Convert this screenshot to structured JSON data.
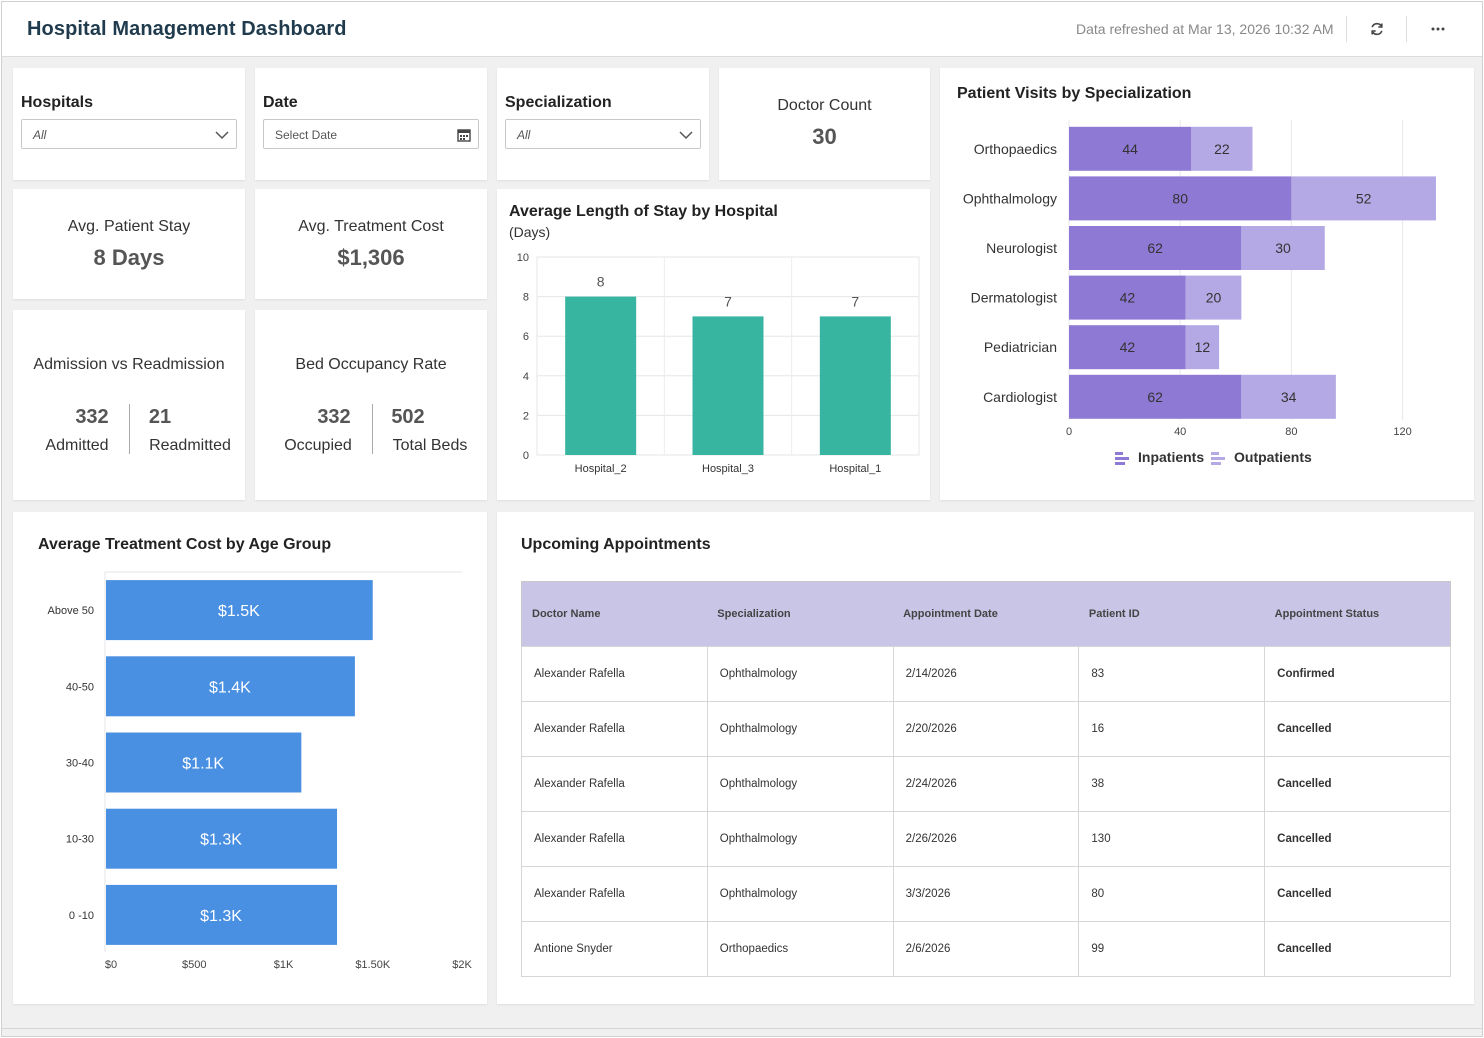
{
  "header": {
    "title": "Hospital Management Dashboard",
    "refresh_text": "Data refreshed at Mar 13, 2026 10:32 AM"
  },
  "filters": {
    "hospitals": {
      "label": "Hospitals",
      "value": "All"
    },
    "date": {
      "label": "Date",
      "placeholder": "Select Date"
    },
    "specialization": {
      "label": "Specialization",
      "value": "All"
    }
  },
  "kpis": {
    "doctor_count": {
      "title": "Doctor Count",
      "value": "30"
    },
    "avg_stay": {
      "title": "Avg. Patient Stay",
      "value": "8 Days"
    },
    "avg_cost": {
      "title": "Avg. Treatment Cost",
      "value": "$1,306"
    },
    "admission": {
      "title": "Admission vs Readmission",
      "left_value": "332",
      "left_label": "Admitted",
      "right_value": "21",
      "right_label": "Readmitted"
    },
    "occupancy": {
      "title": "Bed Occupancy Rate",
      "left_value": "332",
      "left_label": "Occupied",
      "right_value": "502",
      "right_label": "Total Beds"
    }
  },
  "stay_chart": {
    "title": "Average Length of Stay by Hospital",
    "subtitle": "(Days)"
  },
  "visits_chart": {
    "title": "Patient Visits by Specialization"
  },
  "cost_chart": {
    "title": "Average Treatment Cost by Age Group"
  },
  "appointments": {
    "title": "Upcoming Appointments",
    "columns": [
      "Doctor Name",
      "Specialization",
      "Appointment Date",
      "Patient ID",
      "Appointment Status"
    ],
    "rows": [
      [
        "Alexander Rafella",
        "Ophthalmology",
        "2/14/2026",
        "83",
        "Confirmed"
      ],
      [
        "Alexander Rafella",
        "Ophthalmology",
        "2/20/2026",
        "16",
        "Cancelled"
      ],
      [
        "Alexander Rafella",
        "Ophthalmology",
        "2/24/2026",
        "38",
        "Cancelled"
      ],
      [
        "Alexander Rafella",
        "Ophthalmology",
        "2/26/2026",
        "130",
        "Cancelled"
      ],
      [
        "Alexander Rafella",
        "Ophthalmology",
        "3/3/2026",
        "80",
        "Cancelled"
      ],
      [
        "Antione Snyder",
        "Orthopaedics",
        "2/6/2026",
        "99",
        "Cancelled"
      ]
    ]
  },
  "colors": {
    "teal": "#37b5a0",
    "inpatient": "#8e79d4",
    "outpatient": "#b4a9e4",
    "cost_bar": "#4a90e2",
    "confirmed": "#22b04b",
    "cancelled": "#e53935"
  },
  "chart_data": [
    {
      "type": "bar",
      "orientation": "vertical",
      "title": "Average Length of Stay by Hospital",
      "subtitle": "(Days)",
      "categories": [
        "Hospital_2",
        "Hospital_3",
        "Hospital_1"
      ],
      "values": [
        8,
        7,
        7
      ],
      "ylim": [
        0,
        10
      ],
      "yticks": [
        0,
        2,
        4,
        6,
        8,
        10
      ],
      "grid": true
    },
    {
      "type": "bar",
      "orientation": "horizontal",
      "stacked": true,
      "title": "Patient Visits by Specialization",
      "categories": [
        "Orthopaedics",
        "Ophthalmology",
        "Neurologist",
        "Dermatologist",
        "Pediatrician",
        "Cardiologist"
      ],
      "series": [
        {
          "name": "Inpatients",
          "values": [
            44,
            80,
            62,
            42,
            42,
            62
          ]
        },
        {
          "name": "Outpatients",
          "values": [
            22,
            52,
            30,
            20,
            12,
            34
          ]
        }
      ],
      "xlim": [
        0,
        160
      ],
      "xticks": [
        0,
        40,
        80,
        120
      ],
      "legend": "bottom",
      "grid": true
    },
    {
      "type": "bar",
      "orientation": "horizontal",
      "title": "Average Treatment Cost by Age Group",
      "categories": [
        "Above 50",
        "40-50",
        "30-40",
        "10-30",
        "0 -10"
      ],
      "values": [
        1500,
        1400,
        1100,
        1300,
        1300
      ],
      "labels": [
        "$1.5K",
        "$1.4K",
        "$1.1K",
        "$1.3K",
        "$1.3K"
      ],
      "xlim": [
        0,
        2000
      ],
      "xticks": [
        0,
        500,
        1000,
        1500,
        2000
      ],
      "xtick_labels": [
        "$0",
        "$500",
        "$1K",
        "$1.50K",
        "$2K"
      ]
    }
  ]
}
